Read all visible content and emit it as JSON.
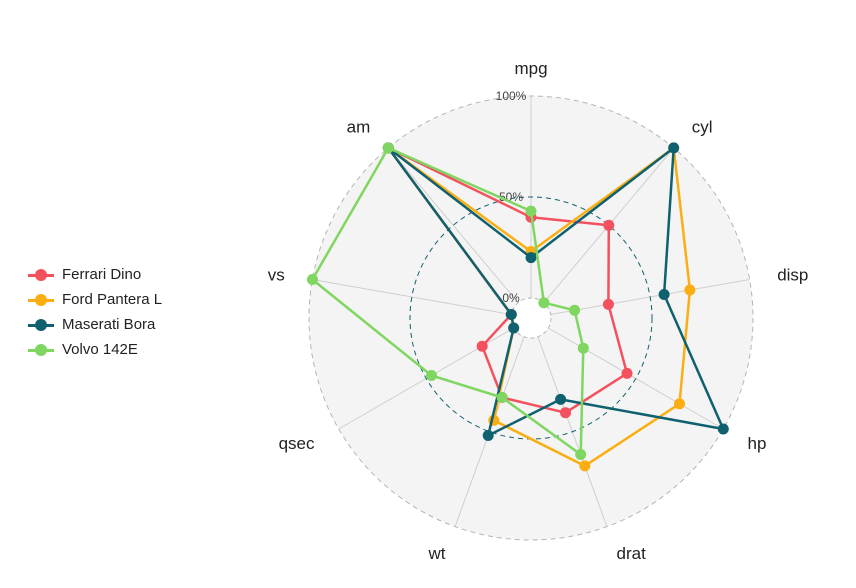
{
  "chart_data": {
    "type": "radar",
    "axes": [
      "mpg",
      "cyl",
      "disp",
      "hp",
      "drat",
      "wt",
      "qsec",
      "vs",
      "am"
    ],
    "range": [
      0,
      1
    ],
    "grid_labels": [
      "0%",
      "50%",
      "100%"
    ],
    "grid": true,
    "legend_position": "left",
    "series": [
      {
        "name": "Ferrari Dino",
        "color": "#f4515f",
        "values": [
          0.4,
          0.5,
          0.29,
          0.45,
          0.4,
          0.32,
          0.18,
          0.0,
          1.0
        ]
      },
      {
        "name": "Ford Pantera L",
        "color": "#fbae12",
        "values": [
          0.23,
          1.0,
          0.7,
          0.75,
          0.68,
          0.44,
          0.0,
          0.0,
          1.0
        ]
      },
      {
        "name": "Maserati Bora",
        "color": "#10616f",
        "values": [
          0.2,
          1.0,
          0.57,
          1.0,
          0.33,
          0.52,
          0.0,
          0.0,
          1.0
        ]
      },
      {
        "name": "Volvo 142E",
        "color": "#7fd661",
        "values": [
          0.43,
          0.0,
          0.12,
          0.2,
          0.62,
          0.32,
          0.47,
          1.0,
          1.0
        ]
      }
    ]
  }
}
